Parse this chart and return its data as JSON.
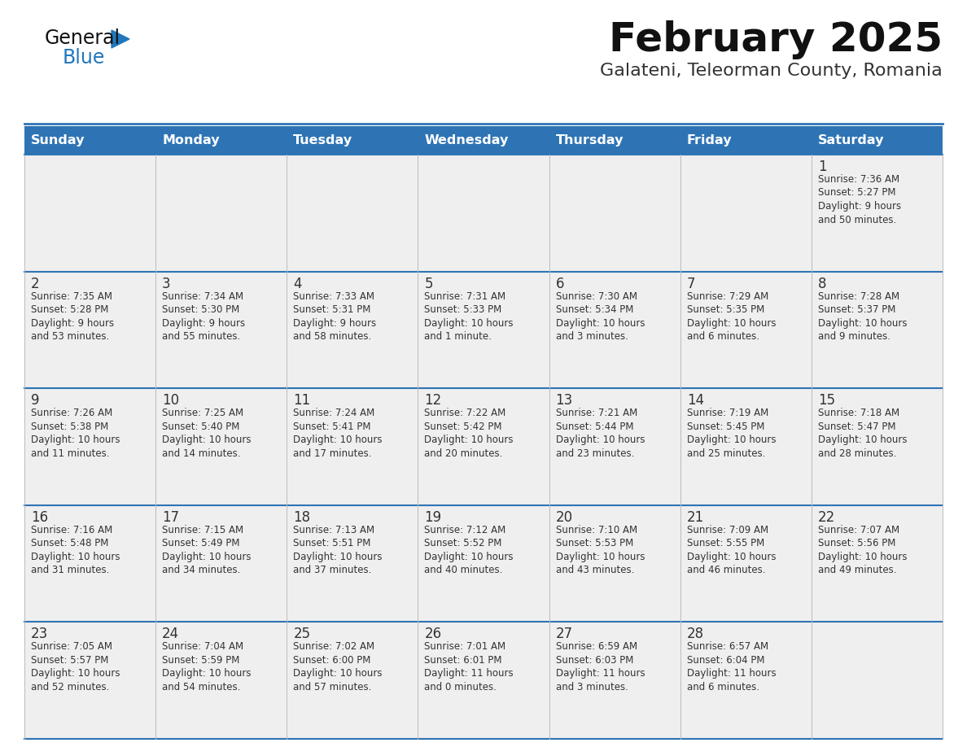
{
  "title": "February 2025",
  "subtitle": "Galateni, Teleorman County, Romania",
  "header_bg": "#2E74B5",
  "header_text_color": "#FFFFFF",
  "cell_bg_light": "#EFEFEF",
  "cell_bg_white": "#FFFFFF",
  "border_color": "#2E74B5",
  "line_color_light": "#AAAAAA",
  "day_headers": [
    "Sunday",
    "Monday",
    "Tuesday",
    "Wednesday",
    "Thursday",
    "Friday",
    "Saturday"
  ],
  "days": [
    {
      "day": 1,
      "col": 6,
      "row": 0,
      "sunrise": "7:36 AM",
      "sunset": "5:27 PM",
      "daylight_line1": "Daylight: 9 hours",
      "daylight_line2": "and 50 minutes."
    },
    {
      "day": 2,
      "col": 0,
      "row": 1,
      "sunrise": "7:35 AM",
      "sunset": "5:28 PM",
      "daylight_line1": "Daylight: 9 hours",
      "daylight_line2": "and 53 minutes."
    },
    {
      "day": 3,
      "col": 1,
      "row": 1,
      "sunrise": "7:34 AM",
      "sunset": "5:30 PM",
      "daylight_line1": "Daylight: 9 hours",
      "daylight_line2": "and 55 minutes."
    },
    {
      "day": 4,
      "col": 2,
      "row": 1,
      "sunrise": "7:33 AM",
      "sunset": "5:31 PM",
      "daylight_line1": "Daylight: 9 hours",
      "daylight_line2": "and 58 minutes."
    },
    {
      "day": 5,
      "col": 3,
      "row": 1,
      "sunrise": "7:31 AM",
      "sunset": "5:33 PM",
      "daylight_line1": "Daylight: 10 hours",
      "daylight_line2": "and 1 minute."
    },
    {
      "day": 6,
      "col": 4,
      "row": 1,
      "sunrise": "7:30 AM",
      "sunset": "5:34 PM",
      "daylight_line1": "Daylight: 10 hours",
      "daylight_line2": "and 3 minutes."
    },
    {
      "day": 7,
      "col": 5,
      "row": 1,
      "sunrise": "7:29 AM",
      "sunset": "5:35 PM",
      "daylight_line1": "Daylight: 10 hours",
      "daylight_line2": "and 6 minutes."
    },
    {
      "day": 8,
      "col": 6,
      "row": 1,
      "sunrise": "7:28 AM",
      "sunset": "5:37 PM",
      "daylight_line1": "Daylight: 10 hours",
      "daylight_line2": "and 9 minutes."
    },
    {
      "day": 9,
      "col": 0,
      "row": 2,
      "sunrise": "7:26 AM",
      "sunset": "5:38 PM",
      "daylight_line1": "Daylight: 10 hours",
      "daylight_line2": "and 11 minutes."
    },
    {
      "day": 10,
      "col": 1,
      "row": 2,
      "sunrise": "7:25 AM",
      "sunset": "5:40 PM",
      "daylight_line1": "Daylight: 10 hours",
      "daylight_line2": "and 14 minutes."
    },
    {
      "day": 11,
      "col": 2,
      "row": 2,
      "sunrise": "7:24 AM",
      "sunset": "5:41 PM",
      "daylight_line1": "Daylight: 10 hours",
      "daylight_line2": "and 17 minutes."
    },
    {
      "day": 12,
      "col": 3,
      "row": 2,
      "sunrise": "7:22 AM",
      "sunset": "5:42 PM",
      "daylight_line1": "Daylight: 10 hours",
      "daylight_line2": "and 20 minutes."
    },
    {
      "day": 13,
      "col": 4,
      "row": 2,
      "sunrise": "7:21 AM",
      "sunset": "5:44 PM",
      "daylight_line1": "Daylight: 10 hours",
      "daylight_line2": "and 23 minutes."
    },
    {
      "day": 14,
      "col": 5,
      "row": 2,
      "sunrise": "7:19 AM",
      "sunset": "5:45 PM",
      "daylight_line1": "Daylight: 10 hours",
      "daylight_line2": "and 25 minutes."
    },
    {
      "day": 15,
      "col": 6,
      "row": 2,
      "sunrise": "7:18 AM",
      "sunset": "5:47 PM",
      "daylight_line1": "Daylight: 10 hours",
      "daylight_line2": "and 28 minutes."
    },
    {
      "day": 16,
      "col": 0,
      "row": 3,
      "sunrise": "7:16 AM",
      "sunset": "5:48 PM",
      "daylight_line1": "Daylight: 10 hours",
      "daylight_line2": "and 31 minutes."
    },
    {
      "day": 17,
      "col": 1,
      "row": 3,
      "sunrise": "7:15 AM",
      "sunset": "5:49 PM",
      "daylight_line1": "Daylight: 10 hours",
      "daylight_line2": "and 34 minutes."
    },
    {
      "day": 18,
      "col": 2,
      "row": 3,
      "sunrise": "7:13 AM",
      "sunset": "5:51 PM",
      "daylight_line1": "Daylight: 10 hours",
      "daylight_line2": "and 37 minutes."
    },
    {
      "day": 19,
      "col": 3,
      "row": 3,
      "sunrise": "7:12 AM",
      "sunset": "5:52 PM",
      "daylight_line1": "Daylight: 10 hours",
      "daylight_line2": "and 40 minutes."
    },
    {
      "day": 20,
      "col": 4,
      "row": 3,
      "sunrise": "7:10 AM",
      "sunset": "5:53 PM",
      "daylight_line1": "Daylight: 10 hours",
      "daylight_line2": "and 43 minutes."
    },
    {
      "day": 21,
      "col": 5,
      "row": 3,
      "sunrise": "7:09 AM",
      "sunset": "5:55 PM",
      "daylight_line1": "Daylight: 10 hours",
      "daylight_line2": "and 46 minutes."
    },
    {
      "day": 22,
      "col": 6,
      "row": 3,
      "sunrise": "7:07 AM",
      "sunset": "5:56 PM",
      "daylight_line1": "Daylight: 10 hours",
      "daylight_line2": "and 49 minutes."
    },
    {
      "day": 23,
      "col": 0,
      "row": 4,
      "sunrise": "7:05 AM",
      "sunset": "5:57 PM",
      "daylight_line1": "Daylight: 10 hours",
      "daylight_line2": "and 52 minutes."
    },
    {
      "day": 24,
      "col": 1,
      "row": 4,
      "sunrise": "7:04 AM",
      "sunset": "5:59 PM",
      "daylight_line1": "Daylight: 10 hours",
      "daylight_line2": "and 54 minutes."
    },
    {
      "day": 25,
      "col": 2,
      "row": 4,
      "sunrise": "7:02 AM",
      "sunset": "6:00 PM",
      "daylight_line1": "Daylight: 10 hours",
      "daylight_line2": "and 57 minutes."
    },
    {
      "day": 26,
      "col": 3,
      "row": 4,
      "sunrise": "7:01 AM",
      "sunset": "6:01 PM",
      "daylight_line1": "Daylight: 11 hours",
      "daylight_line2": "and 0 minutes."
    },
    {
      "day": 27,
      "col": 4,
      "row": 4,
      "sunrise": "6:59 AM",
      "sunset": "6:03 PM",
      "daylight_line1": "Daylight: 11 hours",
      "daylight_line2": "and 3 minutes."
    },
    {
      "day": 28,
      "col": 5,
      "row": 4,
      "sunrise": "6:57 AM",
      "sunset": "6:04 PM",
      "daylight_line1": "Daylight: 11 hours",
      "daylight_line2": "and 6 minutes."
    }
  ],
  "logo_color_general": "#111111",
  "logo_color_blue": "#2277BB",
  "title_color": "#111111",
  "subtitle_color": "#333333",
  "num_rows": 5,
  "day_number_color": "#333333",
  "text_color": "#333333"
}
